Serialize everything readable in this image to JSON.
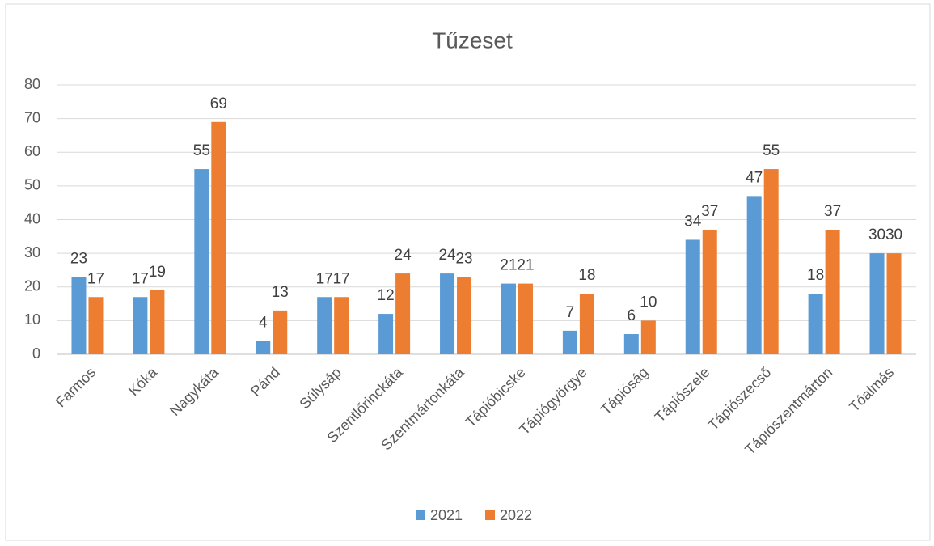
{
  "chart_data": {
    "type": "bar",
    "title": "Tűzeset",
    "categories": [
      "Farmos",
      "Kóka",
      "Nagykáta",
      "Pánd",
      "Súlysáp",
      "Szentlőrinckáta",
      "Szentmártonkáta",
      "Tápióbicske",
      "Tápiógyörgye",
      "Tápióság",
      "Tápiószele",
      "Tápiószecső",
      "Tápiószentmárton",
      "Tóalmás"
    ],
    "series": [
      {
        "name": "2021",
        "color": "#5b9bd5",
        "values": [
          23,
          17,
          55,
          4,
          17,
          12,
          24,
          21,
          7,
          6,
          34,
          47,
          18,
          30
        ]
      },
      {
        "name": "2022",
        "color": "#ed7d31",
        "values": [
          17,
          19,
          69,
          13,
          17,
          24,
          23,
          21,
          18,
          10,
          37,
          55,
          37,
          30
        ]
      }
    ],
    "ylim": [
      0,
      80
    ],
    "yticks": [
      0,
      10,
      20,
      30,
      40,
      50,
      60,
      70,
      80
    ],
    "grid": true,
    "legend": "bottom"
  }
}
